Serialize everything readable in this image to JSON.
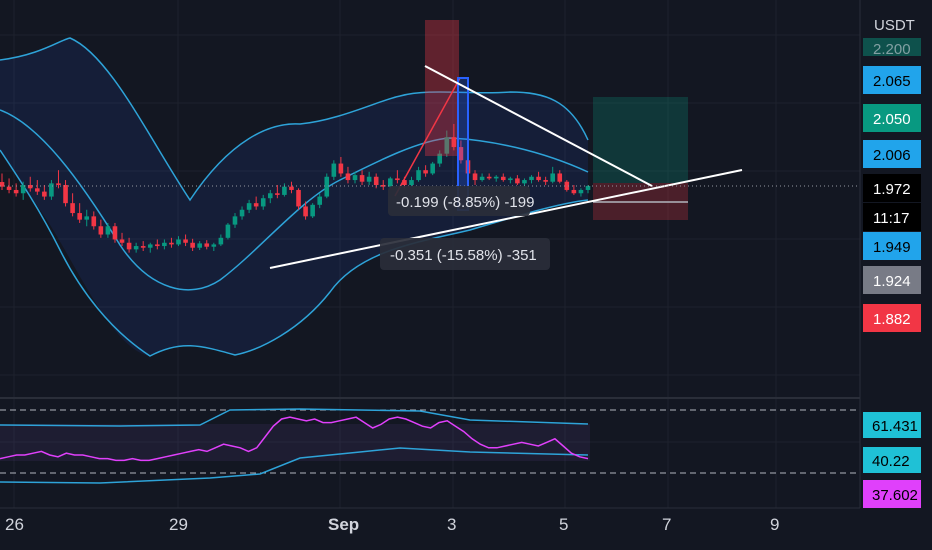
{
  "chart_data": [
    {
      "type": "candlestick",
      "title": "",
      "currency": "USDT",
      "price_range": [
        1.76,
        2.3
      ],
      "date_range": [
        "Aug 26",
        "Sep 10"
      ],
      "price_tags": [
        {
          "label": "2.065",
          "bg": "#21a4eb",
          "fg": "#000000"
        },
        {
          "label": "2.050",
          "bg": "#089981",
          "fg": "#ffffff"
        },
        {
          "label": "2.006",
          "bg": "#21a4eb",
          "fg": "#000000"
        },
        {
          "label": "1.972",
          "bg": "#000000",
          "fg": "#ffffff"
        },
        {
          "label": "11:17",
          "bg": "#000000",
          "fg": "#ffffff"
        },
        {
          "label": "1.949",
          "bg": "#21a4eb",
          "fg": "#000000"
        },
        {
          "label": "1.924",
          "bg": "#787b86",
          "fg": "#ffffff"
        },
        {
          "label": "1.882",
          "bg": "#f23645",
          "fg": "#ffffff"
        }
      ],
      "partial_top_tag": "2.200",
      "x_labels": [
        "26",
        "29",
        "Sep",
        "3",
        "5",
        "7",
        "9"
      ],
      "measurements": [
        {
          "label": "-0.199 (-8.85%) -199"
        },
        {
          "label": "-0.351 (-15.58%) -351"
        }
      ],
      "candles": [
        [
          1.984,
          2.01,
          1.96,
          1.97
        ],
        [
          1.97,
          1.995,
          1.95,
          1.96
        ],
        [
          1.96,
          1.98,
          1.94,
          1.95
        ],
        [
          1.95,
          1.985,
          1.93,
          1.975
        ],
        [
          1.975,
          2.0,
          1.955,
          1.965
        ],
        [
          1.965,
          1.99,
          1.945,
          1.955
        ],
        [
          1.955,
          1.975,
          1.93,
          1.94
        ],
        [
          1.94,
          1.99,
          1.93,
          1.98
        ],
        [
          1.98,
          2.02,
          1.965,
          1.975
        ],
        [
          1.975,
          1.99,
          1.91,
          1.92
        ],
        [
          1.92,
          1.95,
          1.88,
          1.89
        ],
        [
          1.89,
          1.92,
          1.86,
          1.87
        ],
        [
          1.87,
          1.9,
          1.85,
          1.88
        ],
        [
          1.88,
          1.895,
          1.84,
          1.85
        ],
        [
          1.85,
          1.87,
          1.815,
          1.825
        ],
        [
          1.825,
          1.86,
          1.815,
          1.85
        ],
        [
          1.85,
          1.86,
          1.8,
          1.81
        ],
        [
          1.81,
          1.83,
          1.79,
          1.8
        ],
        [
          1.8,
          1.815,
          1.77,
          1.78
        ],
        [
          1.78,
          1.8,
          1.77,
          1.79
        ],
        [
          1.79,
          1.805,
          1.775,
          1.785
        ],
        [
          1.785,
          1.8,
          1.77,
          1.795
        ],
        [
          1.795,
          1.81,
          1.78,
          1.79
        ],
        [
          1.79,
          1.81,
          1.78,
          1.8
        ],
        [
          1.8,
          1.815,
          1.785,
          1.795
        ],
        [
          1.795,
          1.82,
          1.79,
          1.81
        ],
        [
          1.81,
          1.825,
          1.79,
          1.8
        ],
        [
          1.8,
          1.812,
          1.775,
          1.785
        ],
        [
          1.785,
          1.805,
          1.778,
          1.798
        ],
        [
          1.798,
          1.808,
          1.78,
          1.788
        ],
        [
          1.788,
          1.8,
          1.775,
          1.795
        ],
        [
          1.795,
          1.825,
          1.79,
          1.815
        ],
        [
          1.815,
          1.86,
          1.81,
          1.855
        ],
        [
          1.855,
          1.89,
          1.845,
          1.88
        ],
        [
          1.88,
          1.91,
          1.87,
          1.9
        ],
        [
          1.9,
          1.93,
          1.89,
          1.92
        ],
        [
          1.92,
          1.94,
          1.9,
          1.91
        ],
        [
          1.91,
          1.945,
          1.9,
          1.935
        ],
        [
          1.935,
          1.96,
          1.92,
          1.95
        ],
        [
          1.95,
          1.975,
          1.935,
          1.945
        ],
        [
          1.945,
          1.98,
          1.94,
          1.97
        ],
        [
          1.97,
          1.985,
          1.95,
          1.96
        ],
        [
          1.96,
          1.965,
          1.9,
          1.91
        ],
        [
          1.91,
          1.925,
          1.87,
          1.88
        ],
        [
          1.88,
          1.92,
          1.875,
          1.915
        ],
        [
          1.915,
          1.95,
          1.905,
          1.94
        ],
        [
          1.94,
          2.01,
          1.935,
          2.0
        ],
        [
          2.0,
          2.05,
          1.99,
          2.04
        ],
        [
          2.04,
          2.06,
          2.0,
          2.01
        ],
        [
          2.01,
          2.03,
          1.98,
          1.99
        ],
        [
          1.99,
          2.015,
          1.98,
          2.005
        ],
        [
          2.005,
          2.02,
          1.975,
          1.985
        ],
        [
          1.985,
          2.015,
          1.975,
          2.0
        ],
        [
          2.0,
          2.01,
          1.965,
          1.975
        ],
        [
          1.975,
          1.99,
          1.96,
          1.97
        ],
        [
          1.97,
          2.0,
          1.965,
          1.995
        ],
        [
          1.995,
          2.02,
          1.98,
          1.99
        ],
        [
          1.99,
          2.0,
          1.965,
          1.975
        ],
        [
          1.975,
          2.0,
          1.97,
          1.99
        ],
        [
          1.99,
          2.03,
          1.985,
          2.02
        ],
        [
          2.02,
          2.035,
          2.0,
          2.01
        ],
        [
          2.01,
          2.045,
          2.005,
          2.04
        ],
        [
          2.04,
          2.08,
          2.03,
          2.07
        ],
        [
          2.07,
          2.14,
          2.06,
          2.12
        ],
        [
          2.12,
          2.16,
          2.08,
          2.09
        ],
        [
          2.09,
          2.11,
          2.04,
          2.05
        ],
        [
          2.05,
          2.065,
          2.0,
          2.01
        ],
        [
          2.01,
          2.02,
          1.975,
          1.99
        ],
        [
          1.99,
          2.01,
          1.985,
          2.0
        ],
        [
          2.0,
          2.01,
          1.99,
          1.995
        ],
        [
          1.995,
          2.005,
          1.985,
          2.0
        ],
        [
          2.0,
          2.01,
          1.985,
          1.99
        ],
        [
          1.99,
          2.0,
          1.98,
          1.995
        ],
        [
          1.995,
          2.005,
          1.975,
          1.98
        ],
        [
          1.98,
          1.995,
          1.97,
          1.99
        ],
        [
          1.99,
          2.005,
          1.98,
          2.0
        ],
        [
          2.0,
          2.015,
          1.985,
          1.99
        ],
        [
          1.99,
          2.0,
          1.975,
          1.985
        ],
        [
          1.985,
          2.03,
          1.98,
          2.01
        ],
        [
          2.01,
          2.02,
          1.98,
          1.985
        ],
        [
          1.985,
          1.99,
          1.955,
          1.96
        ],
        [
          1.96,
          1.975,
          1.945,
          1.95
        ],
        [
          1.95,
          1.965,
          1.94,
          1.96
        ],
        [
          1.96,
          1.975,
          1.95,
          1.972
        ]
      ],
      "rsi": {
        "levels": [
          61.431,
          40.22,
          37.602
        ],
        "values": [
          38,
          39,
          40,
          40,
          41,
          42,
          40,
          39,
          41,
          40,
          40,
          39,
          38,
          38,
          37,
          37,
          38,
          37,
          37,
          38,
          39,
          40,
          41,
          42,
          43,
          42,
          44,
          46,
          45,
          44,
          42,
          44,
          50,
          56,
          60,
          61,
          60,
          59,
          60,
          58,
          58,
          59,
          60,
          61,
          58,
          55,
          57,
          60,
          61,
          60,
          58,
          56,
          55,
          58,
          59,
          56,
          53,
          49,
          46,
          44,
          44,
          45,
          46,
          47,
          46,
          45,
          47,
          49,
          45,
          41,
          39,
          38
        ]
      }
    }
  ]
}
